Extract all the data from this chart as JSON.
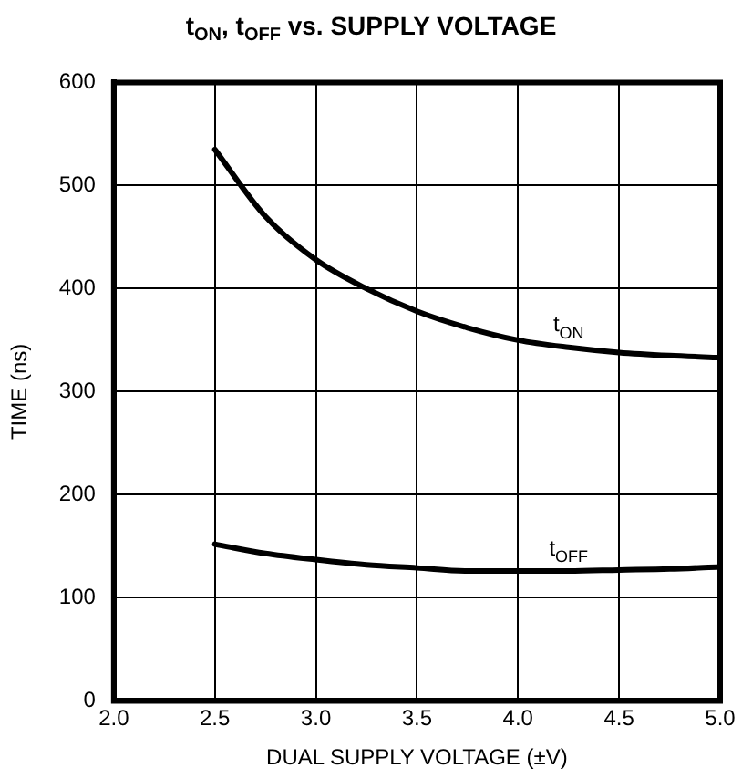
{
  "chart_data": {
    "type": "line",
    "title": "t$_{ON}$, t$_{OFF}$ vs. SUPPLY VOLTAGE",
    "xlabel": "DUAL SUPPLY VOLTAGE (±V)",
    "ylabel": "TIME (ns)",
    "x": [
      2.5,
      2.75,
      3.0,
      3.25,
      3.5,
      3.75,
      4.0,
      4.25,
      4.5,
      4.75,
      5.0
    ],
    "series": [
      {
        "name": "t$_{ON}$",
        "color": "#000000",
        "values": [
          535,
          470,
          428,
          400,
          378,
          362,
          350,
          343,
          338,
          335,
          333
        ]
      },
      {
        "name": "t$_{OFF}$",
        "color": "#000000",
        "values": [
          152,
          143,
          137,
          132,
          129,
          126,
          126,
          126,
          127,
          128,
          130
        ]
      }
    ],
    "xlim": [
      2.0,
      5.0
    ],
    "ylim": [
      0,
      600
    ],
    "xticks": [
      {
        "value": 2.0,
        "label": "2.0"
      },
      {
        "value": 2.5,
        "label": "2.5"
      },
      {
        "value": 3.0,
        "label": "3.0"
      },
      {
        "value": 3.5,
        "label": "3.5"
      },
      {
        "value": 4.0,
        "label": "4.0"
      },
      {
        "value": 4.5,
        "label": "4.5"
      },
      {
        "value": 5.0,
        "label": "5.0"
      }
    ],
    "yticks": [
      0,
      100,
      200,
      300,
      400,
      500,
      600
    ],
    "grid": true,
    "legend": false,
    "marker": "none",
    "line_style": "solid"
  }
}
